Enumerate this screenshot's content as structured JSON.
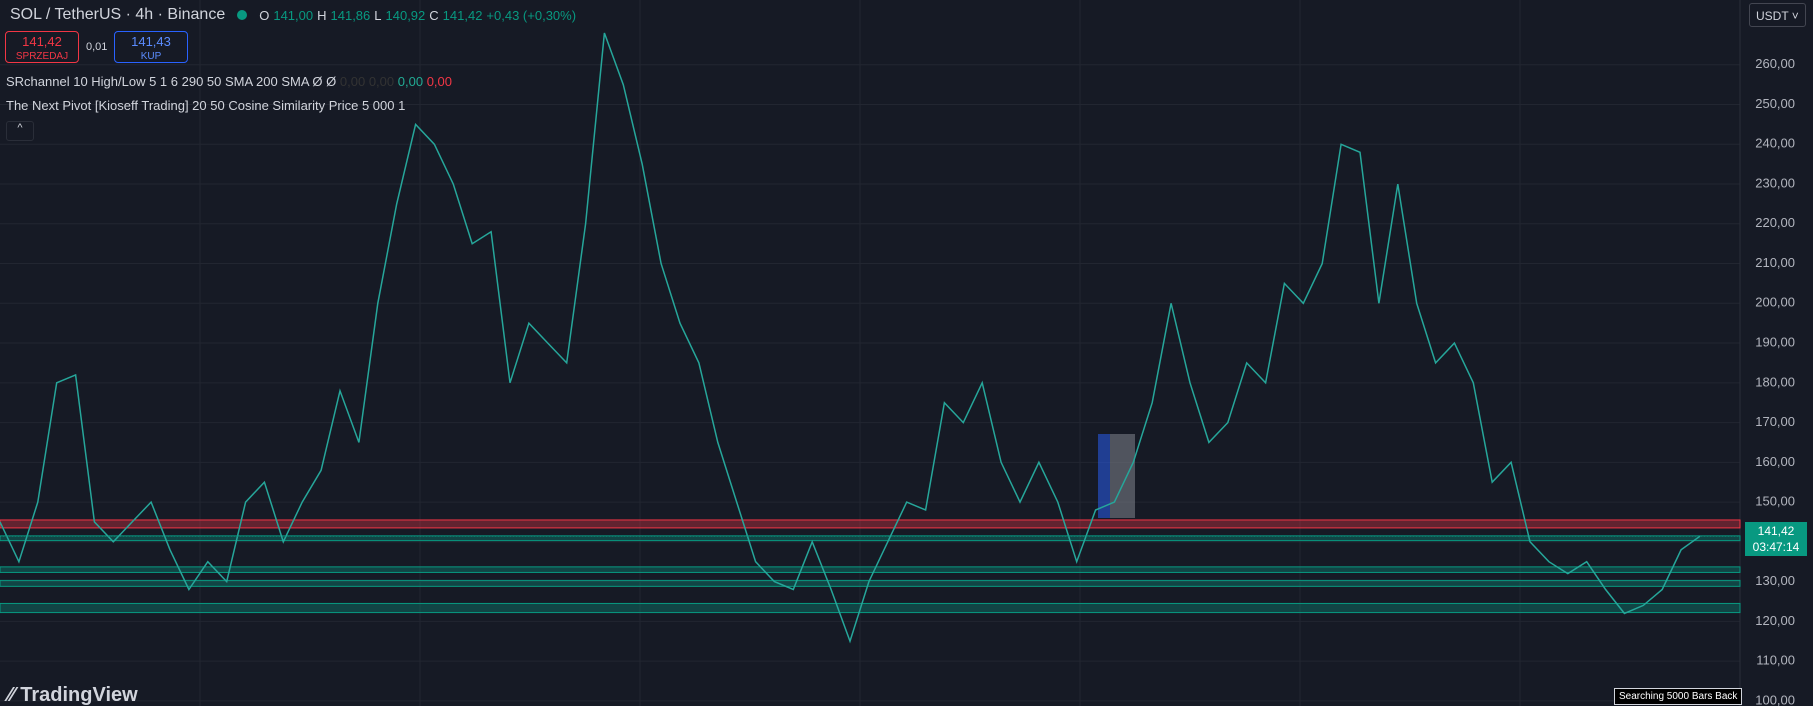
{
  "header": {
    "symbol": "SOL / TetherUS · 4h · Binance",
    "ohlc": [
      {
        "key": "O",
        "value": "141,00"
      },
      {
        "key": "H",
        "value": "141,86"
      },
      {
        "key": "L",
        "value": "140,92"
      },
      {
        "key": "C",
        "value": "141,42"
      }
    ],
    "change": "+0,43 (+0,30%)"
  },
  "trade": {
    "sell_price": "141,42",
    "sell_label": "SPRZEDAJ",
    "spread": "0,01",
    "buy_price": "141,43",
    "buy_label": "KUP"
  },
  "indicators": [
    {
      "text": "SRchannel 10 High/Low 5 1 6 290 50 SMA 200 SMA  Ø  Ø",
      "values": [
        "0,00",
        "0,00",
        "0,00",
        "0,00"
      ]
    },
    {
      "text": "The Next Pivot [Kioseff Trading] 20 50 Cosine Similarity Price 5 000 1"
    }
  ],
  "currency": "USDT",
  "logo": "TradingView",
  "status": "Searching 5000 Bars Back",
  "chart_data": {
    "type": "line",
    "series": [
      {
        "name": "SOL/USDT",
        "color": "#26a69a",
        "values": [
          145,
          135,
          150,
          180,
          182,
          145,
          140,
          145,
          150,
          138,
          128,
          135,
          130,
          150,
          155,
          140,
          150,
          158,
          178,
          165,
          200,
          225,
          245,
          240,
          230,
          215,
          218,
          180,
          195,
          190,
          185,
          220,
          268,
          255,
          235,
          210,
          195,
          185,
          165,
          150,
          135,
          130,
          128,
          140,
          128,
          115,
          130,
          140,
          150,
          148,
          175,
          170,
          180,
          160,
          150,
          160,
          150,
          135,
          148,
          150,
          160,
          175,
          200,
          180,
          165,
          170,
          185,
          180,
          205,
          200,
          210,
          240,
          238,
          200,
          230,
          200,
          185,
          190,
          180,
          155,
          160,
          140,
          135,
          132,
          135,
          128,
          122,
          124,
          128,
          138,
          141.42
        ]
      }
    ],
    "last_price": {
      "value": 141.42,
      "label": "141,42",
      "countdown": "03:47:14"
    },
    "sr_zones": [
      {
        "top": 145.5,
        "bottom": 143.5,
        "color": "#f23645"
      },
      {
        "top": 141.5,
        "bottom": 140.3,
        "color": "#089981"
      },
      {
        "top": 133.7,
        "bottom": 132.3,
        "color": "#089981"
      },
      {
        "top": 130.3,
        "bottom": 128.8,
        "color": "#089981"
      },
      {
        "top": 124.5,
        "bottom": 122.2,
        "color": "#089981"
      }
    ],
    "ylim": [
      98.7,
      276.3
    ],
    "yticks": [
      {
        "value": 100,
        "label": "100,00"
      },
      {
        "value": 110,
        "label": "110,00"
      },
      {
        "value": 120,
        "label": "120,00"
      },
      {
        "value": 130,
        "label": "130,00"
      },
      {
        "value": 140,
        "label": "140,00"
      },
      {
        "value": 150,
        "label": "150,00"
      },
      {
        "value": 160,
        "label": "160,00"
      },
      {
        "value": 170,
        "label": "170,00"
      },
      {
        "value": 180,
        "label": "180,00"
      },
      {
        "value": 190,
        "label": "190,00"
      },
      {
        "value": 200,
        "label": "200,00"
      },
      {
        "value": 210,
        "label": "210,00"
      },
      {
        "value": 220,
        "label": "220,00"
      },
      {
        "value": 230,
        "label": "230,00"
      },
      {
        "value": 240,
        "label": "240,00"
      },
      {
        "value": 250,
        "label": "250,00"
      },
      {
        "value": 260,
        "label": "260,00"
      }
    ],
    "grid": true
  }
}
